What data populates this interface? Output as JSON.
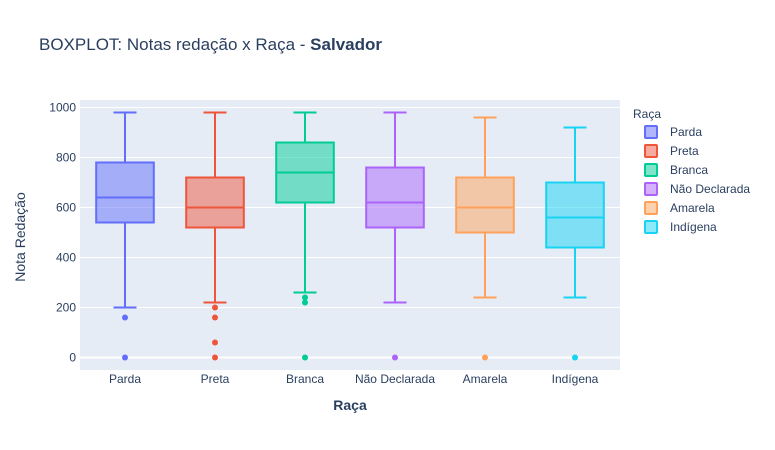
{
  "chart_data": {
    "type": "box",
    "title_prefix": "BOXPLOT: Notas redação x Raça - ",
    "title_bold": "Salvador",
    "xlabel": "Raça",
    "ylabel": "Nota Redação",
    "ylim": [
      -50,
      1030
    ],
    "yticks": [
      0,
      200,
      400,
      600,
      800,
      1000
    ],
    "legend_title": "Raça",
    "legend_position": "right",
    "grid": true,
    "plot_bgcolor": "#e5ecf6",
    "categories": [
      "Parda",
      "Preta",
      "Branca",
      "Não Declarada",
      "Amarela",
      "Indígena"
    ],
    "series": [
      {
        "name": "Parda",
        "color": "#636efa",
        "min": 200,
        "q1": 540,
        "median": 640,
        "q3": 780,
        "max": 980,
        "outliers": [
          160,
          0
        ]
      },
      {
        "name": "Preta",
        "color": "#ef553b",
        "min": 220,
        "q1": 520,
        "median": 600,
        "q3": 720,
        "max": 980,
        "outliers": [
          200,
          160,
          60,
          0
        ]
      },
      {
        "name": "Branca",
        "color": "#00cc96",
        "min": 260,
        "q1": 620,
        "median": 740,
        "q3": 860,
        "max": 980,
        "outliers": [
          240,
          220,
          0
        ]
      },
      {
        "name": "Não Declarada",
        "color": "#ab63fa",
        "min": 220,
        "q1": 520,
        "median": 620,
        "q3": 760,
        "max": 980,
        "outliers": [
          0
        ]
      },
      {
        "name": "Amarela",
        "color": "#ffa15a",
        "min": 240,
        "q1": 500,
        "median": 600,
        "q3": 720,
        "max": 960,
        "outliers": [
          0
        ]
      },
      {
        "name": "Indígena",
        "color": "#19d3f3",
        "min": 240,
        "q1": 440,
        "median": 560,
        "q3": 700,
        "max": 920,
        "outliers": [
          0
        ]
      }
    ]
  }
}
